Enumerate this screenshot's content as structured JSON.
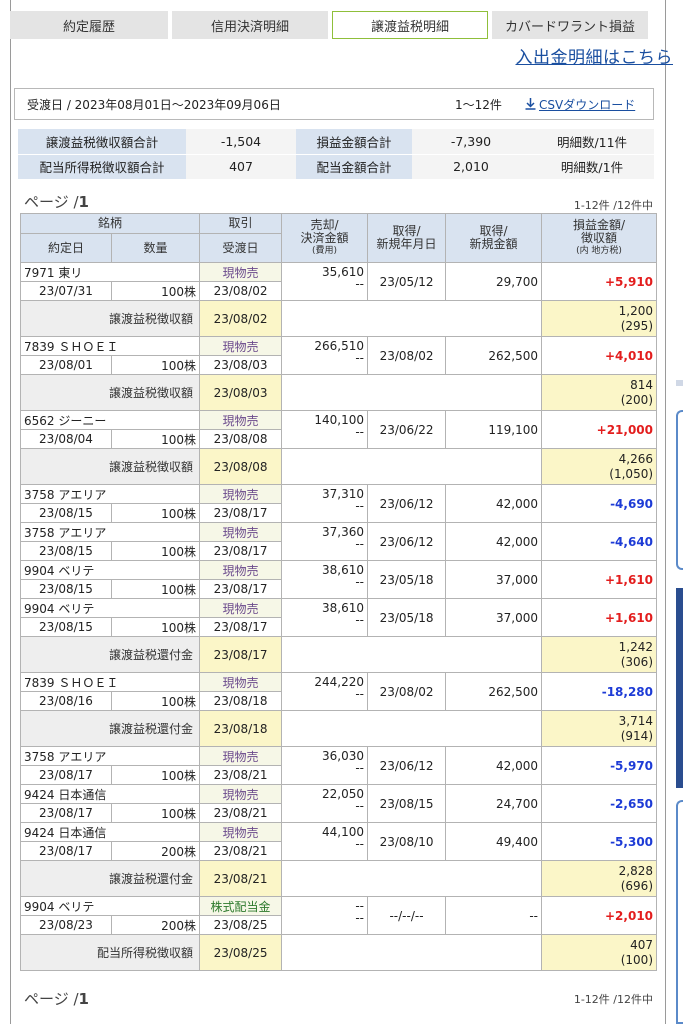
{
  "tabs": [
    {
      "label": "約定履歴",
      "active": false
    },
    {
      "label": "信用決済明細",
      "active": false
    },
    {
      "label": "譲渡益税明細",
      "active": true
    },
    {
      "label": "カバードワラント損益",
      "active": false
    }
  ],
  "transfer_link": "入出金明細はこちら",
  "period": {
    "label": "受渡日 / 2023年08月01日〜2023年09月06日",
    "count": "1〜12件",
    "csv_label": "CSVダウンロード",
    "csv_icon": "download-icon"
  },
  "summary": [
    {
      "label1": "譲渡益税徴収額合計",
      "value1": "-1,504",
      "label2": "損益金額合計",
      "value2": "-7,390",
      "count": "明細数/11件"
    },
    {
      "label1": "配当所得税徴収額合計",
      "value1": "407",
      "label2": "配当金額合計",
      "value2": "2,010",
      "count": "明細数/1件"
    }
  ],
  "pager": {
    "prefix": "ページ /",
    "page": "1",
    "range": "1-12件 /12件中"
  },
  "headers": {
    "meigara": "銘柄",
    "torihiki": "取引",
    "uriki1": "売却/",
    "uriki2": "決済金額",
    "uriki3": "(費用)",
    "shutoku1": "取得/",
    "shutoku2": "新規年月日",
    "shutokukin1": "取得/",
    "shutokukin2": "新規金額",
    "soneki1": "損益金額/",
    "soneki2": "徴収額",
    "soneki3": "(内 地方税)",
    "yakujo": "約定日",
    "suryo": "数量",
    "ukewatashi": "受渡日"
  },
  "rows": [
    {
      "type": "trade",
      "name": "7971 東リ",
      "trade": "現物売",
      "trade_kind": "sell",
      "sale": "35,610",
      "fee": "--",
      "acq_date": "23/05/12",
      "acq_amt": "29,700",
      "pl": "+5,910",
      "sign": "pos",
      "exec_date": "23/07/31",
      "qty": "100株",
      "settle_date": "23/08/02"
    },
    {
      "type": "tax",
      "label": "譲渡益税徴収額",
      "date": "23/08/02",
      "amt1": "1,200",
      "amt2": "(295)"
    },
    {
      "type": "trade",
      "name": "7839 ＳＨＯＥＩ",
      "trade": "現物売",
      "trade_kind": "sell",
      "sale": "266,510",
      "fee": "--",
      "acq_date": "23/08/02",
      "acq_amt": "262,500",
      "pl": "+4,010",
      "sign": "pos",
      "exec_date": "23/08/01",
      "qty": "100株",
      "settle_date": "23/08/03"
    },
    {
      "type": "tax",
      "label": "譲渡益税徴収額",
      "date": "23/08/03",
      "amt1": "814",
      "amt2": "(200)"
    },
    {
      "type": "trade",
      "name": "6562 ジーニー",
      "trade": "現物売",
      "trade_kind": "sell",
      "sale": "140,100",
      "fee": "--",
      "acq_date": "23/06/22",
      "acq_amt": "119,100",
      "pl": "+21,000",
      "sign": "pos",
      "exec_date": "23/08/04",
      "qty": "100株",
      "settle_date": "23/08/08"
    },
    {
      "type": "tax",
      "label": "譲渡益税徴収額",
      "date": "23/08/08",
      "amt1": "4,266",
      "amt2": "(1,050)"
    },
    {
      "type": "trade",
      "name": "3758 アエリア",
      "trade": "現物売",
      "trade_kind": "sell",
      "sale": "37,310",
      "fee": "--",
      "acq_date": "23/06/12",
      "acq_amt": "42,000",
      "pl": "-4,690",
      "sign": "neg",
      "exec_date": "23/08/15",
      "qty": "100株",
      "settle_date": "23/08/17"
    },
    {
      "type": "trade",
      "name": "3758 アエリア",
      "trade": "現物売",
      "trade_kind": "sell",
      "sale": "37,360",
      "fee": "--",
      "acq_date": "23/06/12",
      "acq_amt": "42,000",
      "pl": "-4,640",
      "sign": "neg",
      "exec_date": "23/08/15",
      "qty": "100株",
      "settle_date": "23/08/17"
    },
    {
      "type": "trade",
      "name": "9904 ベリテ",
      "trade": "現物売",
      "trade_kind": "sell",
      "sale": "38,610",
      "fee": "--",
      "acq_date": "23/05/18",
      "acq_amt": "37,000",
      "pl": "+1,610",
      "sign": "pos",
      "exec_date": "23/08/15",
      "qty": "100株",
      "settle_date": "23/08/17"
    },
    {
      "type": "trade",
      "name": "9904 ベリテ",
      "trade": "現物売",
      "trade_kind": "sell",
      "sale": "38,610",
      "fee": "--",
      "acq_date": "23/05/18",
      "acq_amt": "37,000",
      "pl": "+1,610",
      "sign": "pos",
      "exec_date": "23/08/15",
      "qty": "100株",
      "settle_date": "23/08/17"
    },
    {
      "type": "tax",
      "label": "譲渡益税還付金",
      "date": "23/08/17",
      "amt1": "1,242",
      "amt2": "(306)"
    },
    {
      "type": "trade",
      "name": "7839 ＳＨＯＥＩ",
      "trade": "現物売",
      "trade_kind": "sell",
      "sale": "244,220",
      "fee": "--",
      "acq_date": "23/08/02",
      "acq_amt": "262,500",
      "pl": "-18,280",
      "sign": "neg",
      "exec_date": "23/08/16",
      "qty": "100株",
      "settle_date": "23/08/18"
    },
    {
      "type": "tax",
      "label": "譲渡益税還付金",
      "date": "23/08/18",
      "amt1": "3,714",
      "amt2": "(914)"
    },
    {
      "type": "trade",
      "name": "3758 アエリア",
      "trade": "現物売",
      "trade_kind": "sell",
      "sale": "36,030",
      "fee": "--",
      "acq_date": "23/06/12",
      "acq_amt": "42,000",
      "pl": "-5,970",
      "sign": "neg",
      "exec_date": "23/08/17",
      "qty": "100株",
      "settle_date": "23/08/21"
    },
    {
      "type": "trade",
      "name": "9424 日本通信",
      "trade": "現物売",
      "trade_kind": "sell",
      "sale": "22,050",
      "fee": "--",
      "acq_date": "23/08/15",
      "acq_amt": "24,700",
      "pl": "-2,650",
      "sign": "neg",
      "exec_date": "23/08/17",
      "qty": "100株",
      "settle_date": "23/08/21"
    },
    {
      "type": "trade",
      "name": "9424 日本通信",
      "trade": "現物売",
      "trade_kind": "sell",
      "sale": "44,100",
      "fee": "--",
      "acq_date": "23/08/10",
      "acq_amt": "49,400",
      "pl": "-5,300",
      "sign": "neg",
      "exec_date": "23/08/17",
      "qty": "200株",
      "settle_date": "23/08/21"
    },
    {
      "type": "tax",
      "label": "譲渡益税還付金",
      "date": "23/08/21",
      "amt1": "2,828",
      "amt2": "(696)"
    },
    {
      "type": "trade",
      "name": "9904 ベリテ",
      "trade": "株式配当金",
      "trade_kind": "div",
      "sale": "--",
      "fee": "--",
      "acq_date": "--/--/--",
      "acq_amt": "--",
      "pl": "+2,010",
      "sign": "pos",
      "exec_date": "23/08/23",
      "qty": "200株",
      "settle_date": "23/08/25"
    },
    {
      "type": "tax",
      "label": "配当所得税徴収額",
      "date": "23/08/25",
      "amt1": "407",
      "amt2": "(100)"
    }
  ],
  "colors": {
    "accent_blue": "#1a4fa0",
    "positive": "#e31d1d",
    "negative": "#1d3bd6",
    "header_bg": "#d9e3f0",
    "tax_bg": "#fbf6c8",
    "active_tab_border": "#8fbf3a"
  }
}
